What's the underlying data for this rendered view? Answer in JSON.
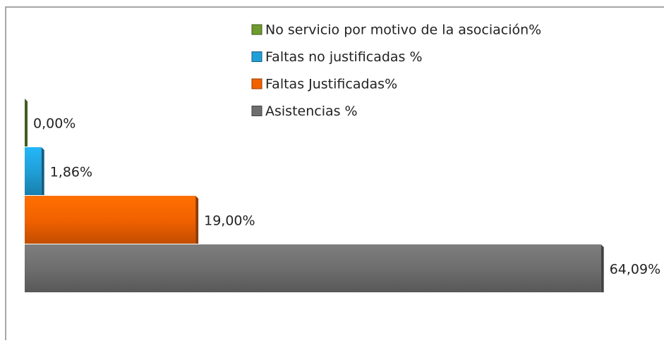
{
  "chart_data": {
    "type": "bar",
    "orientation": "horizontal",
    "xlim": [
      0,
      70
    ],
    "series": [
      {
        "name": "Asistencias %",
        "color": "#6e6e6e",
        "values": [
          64.09
        ],
        "value_labels": [
          "64,09%"
        ]
      },
      {
        "name": "Faltas Justificadas%",
        "color": "#f26100",
        "values": [
          19.0
        ],
        "value_labels": [
          "19,00%"
        ]
      },
      {
        "name": "Faltas no justificadas %",
        "color": "#1f9fd8",
        "values": [
          1.86
        ],
        "value_labels": [
          "1,86%"
        ]
      },
      {
        "name": "No servicio por motivo de la asociación%",
        "color": "#6f9a2e",
        "values": [
          0.0
        ],
        "value_labels": [
          "0,00%"
        ]
      }
    ]
  }
}
